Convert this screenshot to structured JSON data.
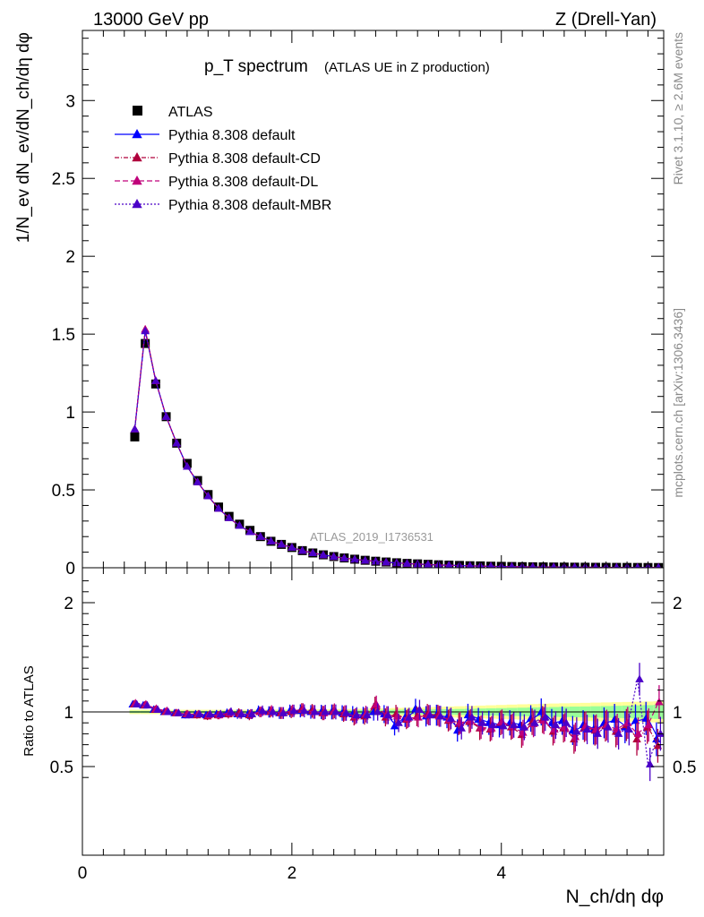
{
  "header": {
    "left": "13000 GeV pp",
    "right": "Z (Drell-Yan)"
  },
  "side": {
    "rivet": "Rivet 3.1.10, ≥ 2.6M events",
    "mcplots": "mcplots.cern.ch [arXiv:1306.3436]"
  },
  "chart_data": [
    {
      "type": "scatter",
      "title": "p_T spectrum",
      "subtitle": "(ATLAS UE in Z production)",
      "watermark": "ATLAS_2019_I1736531",
      "xlabel": "N_ch/dη dφ",
      "ylabel": "1/N_ev dN_ev/dN_ch/dη dφ",
      "xlim": [
        0,
        5.55
      ],
      "ylim": [
        0,
        3.45
      ],
      "xticks": [
        "0",
        "2",
        "4"
      ],
      "yticks": [
        "0",
        "0.5",
        "1",
        "1.5",
        "2",
        "2.5",
        "3"
      ],
      "legend_position": "top-left",
      "x": [
        0.5,
        0.6,
        0.7,
        0.8,
        0.9,
        1.0,
        1.1,
        1.2,
        1.3,
        1.4,
        1.5,
        1.6,
        1.7,
        1.8,
        1.9,
        2.0,
        2.1,
        2.2,
        2.3,
        2.4,
        2.5,
        2.6,
        2.7,
        2.8,
        2.9,
        3.0,
        3.1,
        3.2,
        3.3,
        3.4,
        3.5,
        3.6,
        3.7,
        3.8,
        3.9,
        4.0,
        4.1,
        4.2,
        4.3,
        4.4,
        4.5,
        4.6,
        4.7,
        4.8,
        4.9,
        5.0,
        5.1,
        5.2,
        5.3,
        5.4,
        5.5
      ],
      "series": [
        {
          "name": "ATLAS",
          "color": "#000000",
          "marker": "square",
          "values": [
            0.84,
            1.44,
            1.18,
            0.97,
            0.8,
            0.67,
            0.56,
            0.47,
            0.39,
            0.33,
            0.28,
            0.24,
            0.2,
            0.17,
            0.15,
            0.13,
            0.11,
            0.095,
            0.083,
            0.072,
            0.063,
            0.055,
            0.048,
            0.042,
            0.037,
            0.032,
            0.028,
            0.025,
            0.022,
            0.019,
            0.017,
            0.015,
            0.013,
            0.012,
            0.01,
            0.009,
            0.008,
            0.007,
            0.0062,
            0.0055,
            0.0049,
            0.0043,
            0.0038,
            0.0034,
            0.003,
            0.0027,
            0.0024,
            0.0021,
            0.0019,
            0.0017,
            0.0015
          ]
        },
        {
          "name": "Pythia 8.308 default",
          "color": "#0000ff",
          "dash": "",
          "values": [
            0.89,
            1.52,
            1.2,
            0.97,
            0.8,
            0.65,
            0.55,
            0.46,
            0.38,
            0.32,
            0.27,
            0.23,
            0.2,
            0.17,
            0.15,
            0.13,
            0.11,
            0.095,
            0.082,
            0.071,
            0.062,
            0.054,
            0.047,
            0.041,
            0.036,
            0.031,
            0.027,
            0.024,
            0.021,
            0.018,
            0.016,
            0.014,
            0.012,
            0.011,
            0.009,
            0.008,
            0.007,
            0.0062,
            0.0055,
            0.0049,
            0.0043,
            0.0038,
            0.0034,
            0.003,
            0.0027,
            0.0024,
            0.0021,
            0.0019,
            0.0017,
            0.0015,
            0.0013
          ]
        },
        {
          "name": "Pythia 8.308 default-CD",
          "color": "#b0003c",
          "dash": "5,2,1,2",
          "values": [
            0.89,
            1.53,
            1.2,
            0.97,
            0.8,
            0.65,
            0.55,
            0.46,
            0.38,
            0.32,
            0.27,
            0.23,
            0.2,
            0.17,
            0.15,
            0.13,
            0.11,
            0.095,
            0.082,
            0.071,
            0.062,
            0.054,
            0.047,
            0.041,
            0.036,
            0.031,
            0.027,
            0.024,
            0.021,
            0.018,
            0.016,
            0.014,
            0.012,
            0.011,
            0.009,
            0.008,
            0.007,
            0.0062,
            0.0055,
            0.0049,
            0.0043,
            0.0038,
            0.0034,
            0.003,
            0.0027,
            0.0024,
            0.0021,
            0.0019,
            0.0017,
            0.0015,
            0.0013
          ]
        },
        {
          "name": "Pythia 8.308 default-DL",
          "color": "#c0007a",
          "dash": "6,3",
          "values": [
            0.89,
            1.53,
            1.2,
            0.97,
            0.8,
            0.65,
            0.55,
            0.46,
            0.38,
            0.32,
            0.27,
            0.23,
            0.2,
            0.17,
            0.15,
            0.13,
            0.11,
            0.095,
            0.082,
            0.071,
            0.062,
            0.054,
            0.047,
            0.041,
            0.036,
            0.031,
            0.027,
            0.024,
            0.021,
            0.018,
            0.016,
            0.014,
            0.012,
            0.011,
            0.009,
            0.008,
            0.007,
            0.0062,
            0.0055,
            0.0049,
            0.0043,
            0.0038,
            0.0034,
            0.003,
            0.0027,
            0.0024,
            0.0021,
            0.0019,
            0.0017,
            0.0015,
            0.0013
          ]
        },
        {
          "name": "Pythia 8.308 default-MBR",
          "color": "#4b00c8",
          "dash": "2,2",
          "values": [
            0.89,
            1.52,
            1.2,
            0.97,
            0.8,
            0.65,
            0.55,
            0.46,
            0.38,
            0.32,
            0.27,
            0.23,
            0.2,
            0.17,
            0.15,
            0.13,
            0.11,
            0.095,
            0.082,
            0.071,
            0.062,
            0.054,
            0.047,
            0.041,
            0.036,
            0.031,
            0.027,
            0.024,
            0.021,
            0.018,
            0.016,
            0.014,
            0.012,
            0.011,
            0.009,
            0.008,
            0.007,
            0.0062,
            0.0055,
            0.0049,
            0.0043,
            0.0038,
            0.0034,
            0.003,
            0.0027,
            0.0024,
            0.0021,
            0.0019,
            0.0017,
            0.0015,
            0.0013
          ]
        }
      ]
    },
    {
      "type": "scatter",
      "ylabel": "Ratio to ATLAS",
      "xlabel": "N_ch/dη dφ",
      "xlim": [
        0,
        5.55
      ],
      "ylim": [
        0.35,
        2.25
      ],
      "xticks": [
        "0",
        "2",
        "4"
      ],
      "yticks": [
        "0.5",
        "1",
        "2"
      ],
      "x": [
        0.5,
        0.6,
        0.7,
        0.8,
        0.9,
        1.0,
        1.1,
        1.2,
        1.3,
        1.4,
        1.5,
        1.6,
        1.7,
        1.8,
        1.9,
        2.0,
        2.1,
        2.2,
        2.3,
        2.4,
        2.5,
        2.6,
        2.7,
        2.8,
        2.9,
        3.0,
        3.1,
        3.2,
        3.3,
        3.4,
        3.5,
        3.6,
        3.7,
        3.8,
        3.9,
        4.0,
        4.1,
        4.2,
        4.3,
        4.4,
        4.5,
        4.6,
        4.7,
        4.8,
        4.9,
        5.0,
        5.1,
        5.2,
        5.3,
        5.4,
        5.5
      ],
      "band_stat_half_width": [
        0.01,
        0.01,
        0.01,
        0.01,
        0.01,
        0.01,
        0.01,
        0.01,
        0.01,
        0.01,
        0.01,
        0.01,
        0.012,
        0.012,
        0.012,
        0.012,
        0.013,
        0.013,
        0.014,
        0.014,
        0.015,
        0.016,
        0.017,
        0.018,
        0.019,
        0.02,
        0.021,
        0.022,
        0.023,
        0.024,
        0.025,
        0.027,
        0.029,
        0.031,
        0.033,
        0.035,
        0.037,
        0.039,
        0.041,
        0.043,
        0.045,
        0.047,
        0.049,
        0.05,
        0.052,
        0.054,
        0.056,
        0.058,
        0.06,
        0.062,
        0.064
      ],
      "band_total_half_width": [
        0.02,
        0.02,
        0.02,
        0.02,
        0.02,
        0.02,
        0.02,
        0.02,
        0.02,
        0.02,
        0.02,
        0.02,
        0.02,
        0.022,
        0.022,
        0.022,
        0.023,
        0.024,
        0.025,
        0.026,
        0.027,
        0.028,
        0.03,
        0.032,
        0.034,
        0.036,
        0.038,
        0.04,
        0.043,
        0.046,
        0.049,
        0.052,
        0.055,
        0.058,
        0.061,
        0.064,
        0.067,
        0.07,
        0.072,
        0.075,
        0.077,
        0.079,
        0.081,
        0.083,
        0.085,
        0.087,
        0.089,
        0.091,
        0.093,
        0.095,
        0.097
      ],
      "series": [
        {
          "name": "Pythia 8.308 default",
          "color": "#0000ff",
          "dash": "",
          "values": [
            1.07,
            1.06,
            1.02,
            1.0,
            0.99,
            0.97,
            0.98,
            0.97,
            0.98,
            0.99,
            0.98,
            0.98,
            1.01,
            1.0,
            0.99,
            1.01,
            1.01,
            1.0,
            1.0,
            1.0,
            0.99,
            0.98,
            0.97,
            1.0,
            0.98,
            0.87,
            0.95,
            1.03,
            0.96,
            0.97,
            0.95,
            0.83,
            0.97,
            0.93,
            0.9,
            0.88,
            0.9,
            0.88,
            0.94,
            1.0,
            0.9,
            0.92,
            0.83,
            0.88,
            0.84,
            0.9,
            0.93,
            0.86,
            0.92,
            0.94,
            0.75
          ]
        },
        {
          "name": "Pythia 8.308 default-CD",
          "color": "#b0003c",
          "dash": "5,2,1,2",
          "values": [
            1.07,
            1.06,
            1.02,
            1.0,
            0.99,
            0.98,
            0.97,
            0.96,
            0.97,
            0.98,
            0.99,
            0.97,
            1.0,
            1.0,
            0.99,
            1.0,
            1.02,
            1.01,
            0.99,
            1.0,
            0.98,
            0.95,
            0.96,
            1.06,
            0.95,
            0.98,
            0.93,
            0.96,
            0.98,
            0.97,
            0.92,
            0.89,
            0.91,
            0.85,
            0.84,
            0.9,
            0.86,
            0.79,
            0.91,
            0.93,
            0.82,
            0.85,
            0.75,
            0.86,
            0.83,
            0.87,
            0.82,
            0.88,
            0.75,
            0.86,
            0.69
          ]
        },
        {
          "name": "Pythia 8.308 default-DL",
          "color": "#c0007a",
          "dash": "6,3",
          "values": [
            1.08,
            1.07,
            1.03,
            1.01,
            0.99,
            0.98,
            0.98,
            0.97,
            0.97,
            0.99,
            0.98,
            0.98,
            1.0,
            1.01,
            0.99,
            1.01,
            1.02,
            1.0,
            0.99,
            1.01,
            0.99,
            0.96,
            0.98,
            1.07,
            0.97,
            0.96,
            0.94,
            0.95,
            0.97,
            0.96,
            0.93,
            0.9,
            0.92,
            0.86,
            0.85,
            0.91,
            0.87,
            0.81,
            0.89,
            0.92,
            0.84,
            0.86,
            0.77,
            0.87,
            0.84,
            0.88,
            0.84,
            0.9,
            0.8,
            0.88,
            1.09
          ]
        },
        {
          "name": "Pythia 8.308 default-MBR",
          "color": "#4b00c8",
          "dash": "2,2",
          "values": [
            1.07,
            1.06,
            1.02,
            1.0,
            0.99,
            0.97,
            0.98,
            0.98,
            0.98,
            1.0,
            0.98,
            0.98,
            1.01,
            1.0,
            0.99,
            1.01,
            1.01,
            1.0,
            1.0,
            1.0,
            0.99,
            0.97,
            0.97,
            1.0,
            0.97,
            0.9,
            0.95,
            1.02,
            0.97,
            0.96,
            0.94,
            0.85,
            0.95,
            0.9,
            0.88,
            0.87,
            0.88,
            0.86,
            0.9,
            0.95,
            0.88,
            0.9,
            0.82,
            0.84,
            0.8,
            0.86,
            0.8,
            0.84,
            1.3,
            0.52,
            0.8
          ]
        }
      ]
    }
  ]
}
